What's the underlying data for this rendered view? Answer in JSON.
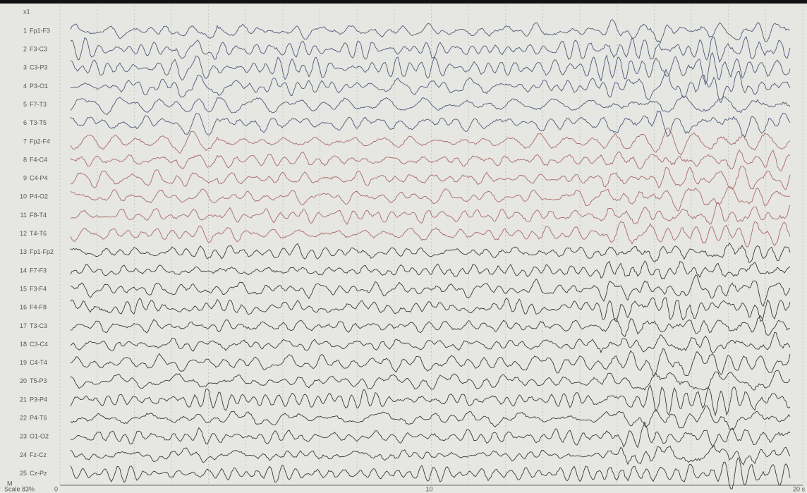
{
  "gain": "x1",
  "channels": [
    {
      "number": 1,
      "label": "Fp1-F3",
      "color": "#4d5a78"
    },
    {
      "number": 2,
      "label": "F3-C3",
      "color": "#4d5a78"
    },
    {
      "number": 3,
      "label": "C3-P3",
      "color": "#4d5a78"
    },
    {
      "number": 4,
      "label": "P3-O1",
      "color": "#4d5a78"
    },
    {
      "number": 5,
      "label": "F7-T3",
      "color": "#4d5a78"
    },
    {
      "number": 6,
      "label": "T3-T5",
      "color": "#4d5a78"
    },
    {
      "number": 7,
      "label": "Fp2-F4",
      "color": "#a86a6a"
    },
    {
      "number": 8,
      "label": "F4-C4",
      "color": "#a86a6a"
    },
    {
      "number": 9,
      "label": "C4-P4",
      "color": "#a86a6a"
    },
    {
      "number": 10,
      "label": "P4-O2",
      "color": "#a86a6a"
    },
    {
      "number": 11,
      "label": "F8-T4",
      "color": "#a86a6a"
    },
    {
      "number": 12,
      "label": "T4-T6",
      "color": "#a86a6a"
    },
    {
      "number": 13,
      "label": "Fp1-Fp2",
      "color": "#3a3a3a"
    },
    {
      "number": 14,
      "label": "F7-F3",
      "color": "#3a3a3a"
    },
    {
      "number": 15,
      "label": "F3-F4",
      "color": "#3a3a3a"
    },
    {
      "number": 16,
      "label": "F4-F8",
      "color": "#3a3a3a"
    },
    {
      "number": 17,
      "label": "T3-C3",
      "color": "#3a3a3a"
    },
    {
      "number": 18,
      "label": "C3-C4",
      "color": "#3a3a3a"
    },
    {
      "number": 19,
      "label": "C4-T4",
      "color": "#3a3a3a"
    },
    {
      "number": 20,
      "label": "T5-P3",
      "color": "#3a3a3a"
    },
    {
      "number": 21,
      "label": "P3-P4",
      "color": "#3a3a3a"
    },
    {
      "number": 22,
      "label": "P4-T6",
      "color": "#3a3a3a"
    },
    {
      "number": 23,
      "label": "O1-O2",
      "color": "#3a3a3a"
    },
    {
      "number": 24,
      "label": "Fz-Cz",
      "color": "#3a3a3a"
    },
    {
      "number": 25,
      "label": "Cz-Pz",
      "color": "#3a3a3a"
    }
  ],
  "footer": {
    "marker": "M",
    "scale": "Scale 83%",
    "time_labels": [
      "0",
      "10",
      "20 s"
    ]
  }
}
